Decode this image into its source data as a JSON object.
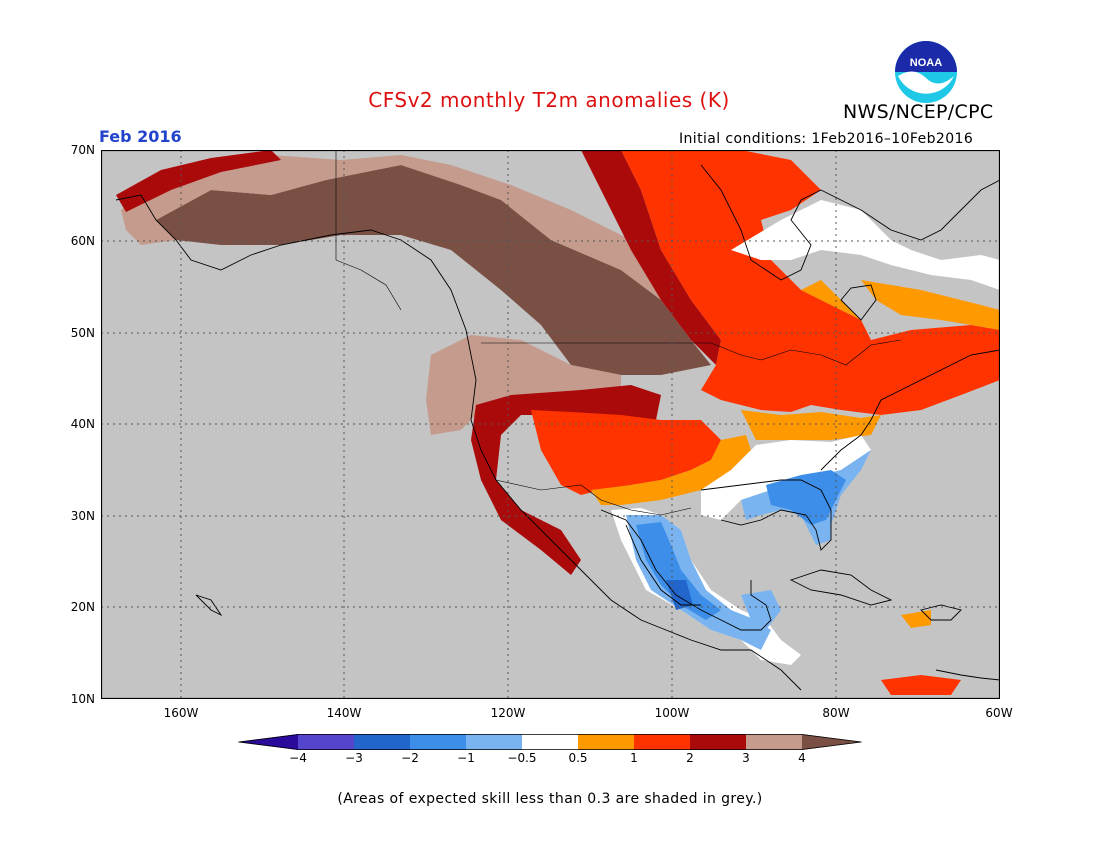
{
  "header": {
    "title": "CFSv2 monthly T2m anomalies (K)",
    "agency": "NWS/NCEP/CPC",
    "month": "Feb 2016",
    "initial_conditions": "Initial conditions:  1Feb2016–10Feb2016",
    "logo_text": "NOAA"
  },
  "map": {
    "region": "North America",
    "lon_range": [
      -170,
      -60
    ],
    "lat_range": [
      10,
      70
    ],
    "lat_labels": [
      "70N",
      "60N",
      "50N",
      "40N",
      "30N",
      "20N",
      "10N"
    ],
    "lon_labels": [
      "160W",
      "140W",
      "120W",
      "100W",
      "80W",
      "60W"
    ],
    "gridlines": true,
    "background_color": "#c4c4c4",
    "anomaly_regions": [
      {
        "class": ">4",
        "where": "Alaska interior, western Canada, northern Rockies"
      },
      {
        "class": "3 to 4",
        "where": "Alaska coasts, Pacific Northwest, Great Basin"
      },
      {
        "class": "2 to 3",
        "where": "Southwestern US, western Mexico, northern Plains edge"
      },
      {
        "class": "1 to 2",
        "where": "Central Plains, Hudson Bay region, Great Lakes, Northeast"
      },
      {
        "class": "0.5 to 1",
        "where": "Southern Plains fringe, Quebec, Atlantic Canada"
      },
      {
        "class": "-0.5 to 0.5",
        "where": "Mid-South, Texas coast, Labrador"
      },
      {
        "class": "-1 to -0.5",
        "where": "Southeast US, eastern Mexico, Central America"
      },
      {
        "class": "-2 to -1",
        "where": "Georgia/Alabama, central Mexico core"
      }
    ]
  },
  "colorbar": {
    "tick_labels": [
      "−4",
      "−3",
      "−2",
      "−1",
      "−0.5",
      "0.5",
      "1",
      "2",
      "3",
      "4"
    ],
    "colors": [
      "#2a0a9a",
      "#5544cc",
      "#2266cc",
      "#3c8ee8",
      "#7ab4f0",
      "#ffffff",
      "#ff9900",
      "#ff3300",
      "#aa0a0a",
      "#c49b8c",
      "#7a5045"
    ]
  },
  "footnote": "(Areas of expected skill less than 0.3 are shaded in grey.)"
}
